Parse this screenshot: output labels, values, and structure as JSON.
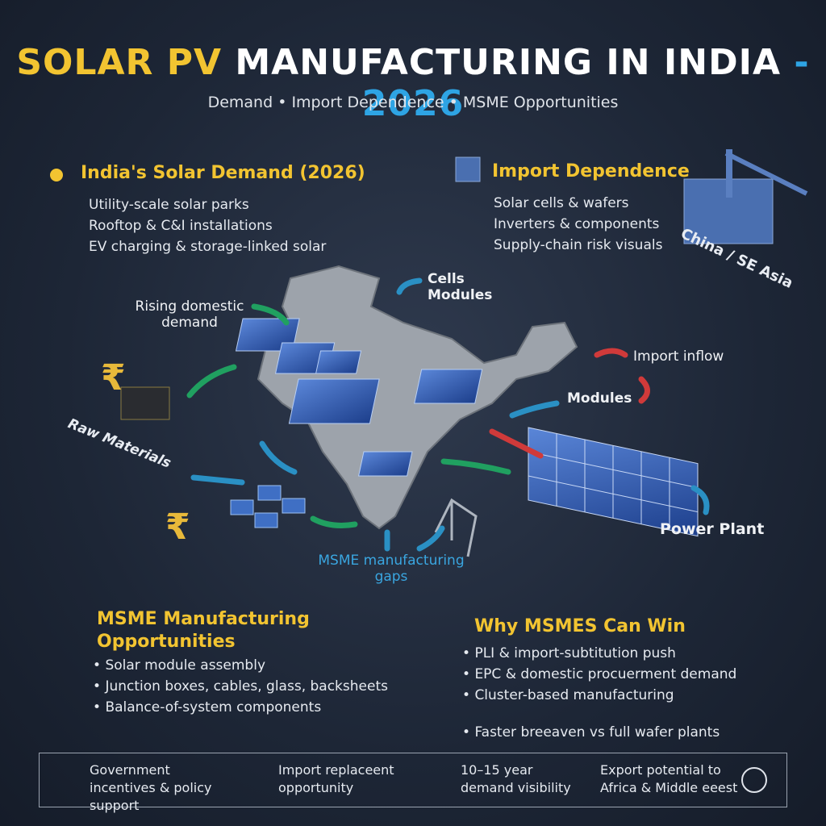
{
  "header": {
    "title_a": "SOLAR PV",
    "title_b": "MANUFACTURING IN INDIA",
    "title_c": "- 2026",
    "subtitle": "Demand • Import Dependence • MSME Opportunities"
  },
  "demand": {
    "heading": "India's Solar Demand (2026)",
    "items": [
      "Utility-scale solar parks",
      "Rooftop & C&I installations",
      "EV charging & storage-linked solar"
    ]
  },
  "imports": {
    "heading": "Import Dependence",
    "items": [
      "Solar cells & wafers",
      "Inverters & components",
      "Supply-chain risk visuals"
    ],
    "origin": "China / SE Asia"
  },
  "map": {
    "cells": "Cells",
    "modules_top": "Modules",
    "rising": "Rising domestic demand",
    "import_inflow": "Import inflow",
    "modules": "Modules",
    "raw_materials": "Raw Materials",
    "power_plant": "Power Plant",
    "msme_gaps": "MSME manufacturing gaps"
  },
  "msme": {
    "heading": "MSME Manufacturing Opportunities",
    "items": [
      "Solar module assembly",
      "Junction boxes, cables, glass, backsheets",
      "Balance-of-system components"
    ]
  },
  "why": {
    "heading": "Why MSMES Can Win",
    "items": [
      "PLI & import-subtitution push",
      "EPC & domestic procuerment demand",
      "Cluster-based manufacturing",
      "Faster breeaven vs full wafer plants"
    ]
  },
  "footer": [
    "Government incentives & policy support",
    "Import replaceent opportunity",
    "10–15 year demand visibility",
    "Export potential to Africa & Middle eeest"
  ]
}
